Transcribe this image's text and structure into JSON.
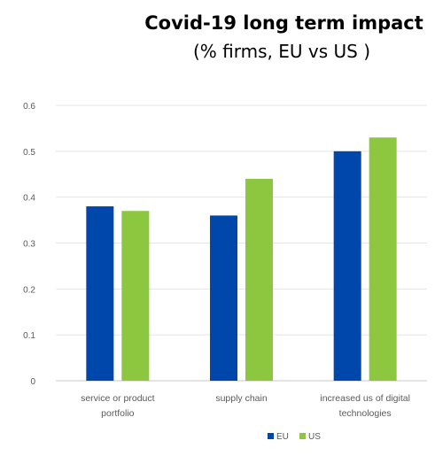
{
  "chart_data": {
    "type": "bar",
    "title": "Covid-19 long term impact",
    "subtitle": "(% firms, EU vs US )",
    "categories": [
      [
        "service or product",
        "portfolio"
      ],
      [
        "supply chain"
      ],
      [
        "increased us of digital",
        "technologies"
      ]
    ],
    "series": [
      {
        "name": "EU",
        "color": "#0047AB",
        "values": [
          0.38,
          0.36,
          0.5
        ]
      },
      {
        "name": "US",
        "color": "#8DC63F",
        "values": [
          0.37,
          0.44,
          0.53
        ]
      }
    ],
    "yticks": [
      "0",
      "0.1",
      "0.2",
      "0.3",
      "0.4",
      "0.5",
      "0.6"
    ],
    "ylim": [
      0,
      0.6
    ],
    "grid": true,
    "legend": "bottom-center"
  }
}
